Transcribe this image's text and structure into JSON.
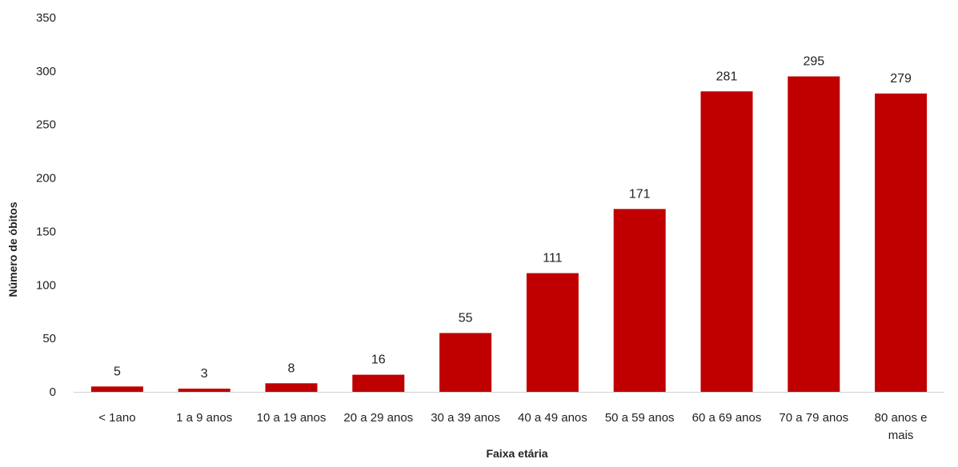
{
  "chart_data": {
    "type": "bar",
    "categories": [
      [
        "< 1ano"
      ],
      [
        "1 a 9 anos"
      ],
      [
        "10 a 19 anos"
      ],
      [
        "20 a 29 anos"
      ],
      [
        "30 a 39 anos"
      ],
      [
        "40 a 49 anos"
      ],
      [
        "50 a 59 anos"
      ],
      [
        "60 a 69 anos"
      ],
      [
        "70 a 79 anos"
      ],
      [
        "80 anos e",
        "mais"
      ]
    ],
    "values": [
      5,
      3,
      8,
      16,
      55,
      111,
      171,
      281,
      295,
      279
    ],
    "title": "",
    "xlabel": "Faixa etária",
    "ylabel": "Número de óbitos",
    "ylim": [
      0,
      350
    ],
    "yticks": [
      0,
      50,
      100,
      150,
      200,
      250,
      300,
      350
    ],
    "grid": false,
    "legend": "none",
    "bar_color": "#C00000",
    "data_labels": true
  }
}
